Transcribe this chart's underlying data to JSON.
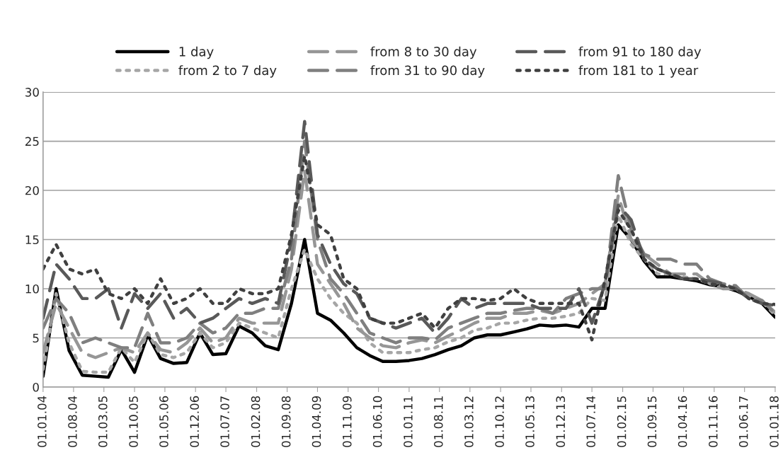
{
  "chart_data": {
    "type": "line",
    "x": [
      "2004-01",
      "2004-04",
      "2004-07",
      "2004-10",
      "2005-01",
      "2005-04",
      "2005-07",
      "2005-10",
      "2006-01",
      "2006-04",
      "2006-07",
      "2006-10",
      "2007-01",
      "2007-04",
      "2007-07",
      "2007-10",
      "2008-01",
      "2008-04",
      "2008-07",
      "2008-10",
      "2009-01",
      "2009-04",
      "2009-07",
      "2009-10",
      "2010-01",
      "2010-04",
      "2010-07",
      "2010-10",
      "2011-01",
      "2011-04",
      "2011-07",
      "2011-10",
      "2012-01",
      "2012-04",
      "2012-07",
      "2012-10",
      "2013-01",
      "2013-04",
      "2013-07",
      "2013-10",
      "2014-01",
      "2014-04",
      "2014-07",
      "2014-10",
      "2015-01",
      "2015-04",
      "2015-07",
      "2015-10",
      "2016-01",
      "2016-04",
      "2016-07",
      "2016-10",
      "2017-01",
      "2017-04",
      "2017-07",
      "2017-10",
      "2018-01"
    ],
    "series": [
      {
        "name": "1 day",
        "color": "#000000",
        "line_style": "solid",
        "values": [
          1.1,
          10,
          3.7,
          1.2,
          1.1,
          1.0,
          3.8,
          1.5,
          5.3,
          2.9,
          2.4,
          2.5,
          5.5,
          3.3,
          3.4,
          6.2,
          5.5,
          4.2,
          3.8,
          8.5,
          15,
          7.5,
          6.8,
          5.5,
          4.0,
          3.2,
          2.6,
          2.6,
          2.7,
          2.9,
          3.3,
          3.8,
          4.2,
          5.0,
          5.3,
          5.3,
          5.6,
          5.9,
          6.3,
          6.2,
          6.3,
          6.1,
          8.0,
          8.0,
          16.5,
          15.0,
          12.8,
          11.2,
          11.2,
          11.0,
          10.8,
          10.4,
          10.2,
          9.8,
          9.2,
          8.5,
          7.1
        ]
      },
      {
        "name": "from 2 to 7 day",
        "color": "#a6a6a6",
        "line_style": "dotted",
        "values": [
          1.8,
          9.5,
          4.5,
          1.6,
          1.5,
          1.5,
          4.0,
          2.5,
          5.5,
          3.3,
          3.0,
          3.5,
          5.5,
          4.0,
          4.5,
          6.5,
          6.0,
          5.5,
          5.0,
          10,
          14,
          11,
          9,
          7.5,
          6.5,
          4.5,
          3.5,
          3.5,
          3.5,
          3.8,
          4.0,
          4.6,
          5.0,
          5.8,
          6.0,
          6.5,
          6.5,
          6.8,
          7.0,
          7.0,
          7.2,
          7.5,
          9.0,
          8.8,
          17.5,
          14.5,
          13.0,
          11.5,
          11.5,
          11.2,
          11.0,
          10.5,
          10.2,
          9.9,
          9.3,
          8.7,
          7.3
        ]
      },
      {
        "name": "from 8 to 30 day",
        "color": "#969696",
        "line_style": "dashed",
        "values": [
          3.5,
          8.5,
          6.0,
          3.5,
          3.0,
          3.5,
          4.0,
          3.5,
          5.5,
          3.8,
          3.5,
          4.5,
          6.0,
          4.5,
          5.0,
          7.0,
          6.5,
          6.5,
          6.5,
          12,
          22,
          12.5,
          10.5,
          8.5,
          6.0,
          5.0,
          4.2,
          4.0,
          4.5,
          4.8,
          4.5,
          5.2,
          5.8,
          6.5,
          7.0,
          7.0,
          7.5,
          7.5,
          7.8,
          7.5,
          8.0,
          8.5,
          9.5,
          10.5,
          19.5,
          15.0,
          13.5,
          12.5,
          11.5,
          11.5,
          11.5,
          10.5,
          10.0,
          10.0,
          9.5,
          8.8,
          7.6
        ]
      },
      {
        "name": "from 31 to 90 day",
        "color": "#7f7f7f",
        "line_style": "dashed",
        "values": [
          6.0,
          9.0,
          7.5,
          4.5,
          5.0,
          4.5,
          4.0,
          4.0,
          7.5,
          4.5,
          4.5,
          5.0,
          6.5,
          5.5,
          6.0,
          7.5,
          7.5,
          8.0,
          8.0,
          13,
          25,
          15,
          11,
          9.5,
          7.5,
          5.5,
          5.0,
          4.5,
          5.0,
          5.0,
          4.8,
          6.0,
          6.5,
          7.0,
          7.5,
          7.5,
          7.8,
          8.0,
          8.0,
          7.5,
          9.0,
          9.5,
          10.0,
          10.0,
          21.5,
          16.0,
          13.5,
          13.0,
          13.0,
          12.5,
          12.5,
          11.0,
          10.5,
          10.3,
          9.0,
          8.8,
          7.5
        ]
      },
      {
        "name": "from 91 to 180 day",
        "color": "#595959",
        "line_style": "dashed",
        "values": [
          7.0,
          12.5,
          11.0,
          9.0,
          9.0,
          10.0,
          6.0,
          9.5,
          8.0,
          9.5,
          7.0,
          8.0,
          6.5,
          7.0,
          8.0,
          9.0,
          8.5,
          9.0,
          8.5,
          15,
          27,
          15.5,
          12.5,
          10.5,
          9.5,
          7.0,
          6.5,
          6.0,
          6.5,
          7.0,
          5.5,
          7.0,
          9.0,
          8.0,
          8.5,
          8.5,
          8.5,
          8.5,
          8.0,
          8.0,
          8.0,
          10.0,
          6.5,
          10.5,
          18.5,
          17.0,
          13.0,
          12.0,
          11.5,
          11.0,
          11.0,
          10.8,
          10.5,
          10.0,
          9.0,
          8.5,
          8.3
        ]
      },
      {
        "name": "from 181 to 1 year",
        "color": "#404040",
        "line_style": "dotted",
        "values": [
          12.0,
          14.5,
          12.0,
          11.5,
          12.0,
          9.5,
          9.0,
          10.0,
          8.5,
          11.0,
          8.5,
          9.0,
          10.0,
          8.5,
          8.5,
          10.0,
          9.5,
          9.5,
          10.0,
          15.5,
          23.5,
          16.5,
          15.5,
          11,
          10.0,
          7.0,
          6.5,
          6.5,
          7.0,
          7.5,
          6.0,
          8.0,
          9.0,
          9.0,
          8.8,
          9.0,
          10.0,
          9.0,
          8.5,
          8.5,
          8.5,
          8.5,
          4.8,
          11.0,
          18.0,
          16.0,
          13.0,
          12.0,
          11.5,
          11.0,
          11.0,
          10.5,
          10.3,
          10.0,
          9.0,
          8.5,
          8.4
        ]
      }
    ],
    "xlim": [
      "2004-01-01",
      "2018-01-01"
    ],
    "xticks": [
      {
        "value": "2004-01-01",
        "label": "01.01.04"
      },
      {
        "value": "2004-08-01",
        "label": "01.08.04"
      },
      {
        "value": "2005-03-01",
        "label": "01.03.05"
      },
      {
        "value": "2005-10-01",
        "label": "01.10.05"
      },
      {
        "value": "2006-05-01",
        "label": "01.05.06"
      },
      {
        "value": "2006-12-01",
        "label": "01.12.06"
      },
      {
        "value": "2007-07-01",
        "label": "01.07.07"
      },
      {
        "value": "2008-02-01",
        "label": "01.02.08"
      },
      {
        "value": "2008-09-01",
        "label": "01.09.08"
      },
      {
        "value": "2009-04-01",
        "label": "01.04.09"
      },
      {
        "value": "2009-11-01",
        "label": "01.11.09"
      },
      {
        "value": "2010-06-01",
        "label": "01.06.10"
      },
      {
        "value": "2011-01-01",
        "label": "01.01.11"
      },
      {
        "value": "2011-08-01",
        "label": "01.08.11"
      },
      {
        "value": "2012-03-01",
        "label": "01.03.12"
      },
      {
        "value": "2012-10-01",
        "label": "01.10.12"
      },
      {
        "value": "2013-05-01",
        "label": "01.05.13"
      },
      {
        "value": "2013-12-01",
        "label": "01.12.13"
      },
      {
        "value": "2014-07-01",
        "label": "01.07.14"
      },
      {
        "value": "2015-02-01",
        "label": "01.02.15"
      },
      {
        "value": "2015-09-01",
        "label": "01.09.15"
      },
      {
        "value": "2016-04-01",
        "label": "01.04.16"
      },
      {
        "value": "2016-11-01",
        "label": "01.11.16"
      },
      {
        "value": "2017-06-01",
        "label": "01.06.17"
      },
      {
        "value": "2018-01-01",
        "label": "01.01.18"
      }
    ],
    "ylim": [
      0,
      30
    ],
    "yticks": [
      0,
      5,
      10,
      15,
      20,
      25,
      30
    ],
    "grid": "y",
    "legend": "top",
    "marker": "none"
  }
}
